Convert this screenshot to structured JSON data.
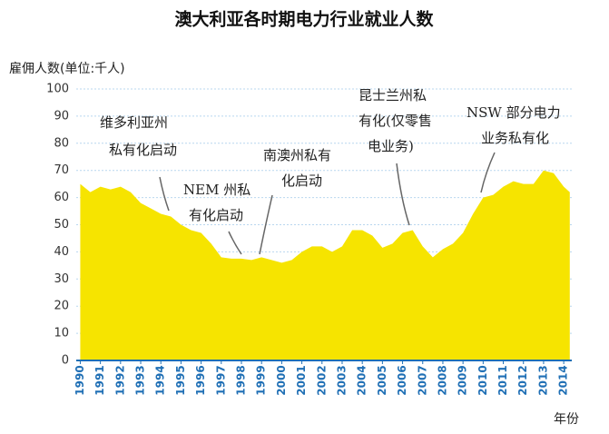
{
  "chart_data": {
    "type": "area",
    "title": "澳大利亚各时期电力行业就业人数",
    "y_label": "雇佣人数(单位:千人)",
    "x_label": "年份",
    "color": "#f6e400",
    "grid": true,
    "x": [
      1990,
      1990.5,
      1991,
      1991.5,
      1992,
      1992.5,
      1993,
      1993.5,
      1994,
      1994.5,
      1995,
      1995.5,
      1996,
      1996.5,
      1997,
      1997.5,
      1998,
      1998.5,
      1999,
      1999.5,
      2000,
      2000.5,
      2001,
      2001.5,
      2002,
      2002.5,
      2003,
      2003.5,
      2004,
      2004.5,
      2005,
      2005.5,
      2006,
      2006.5,
      2007,
      2007.5,
      2008,
      2008.5,
      2009,
      2009.5,
      2010,
      2010.5,
      2011,
      2011.5,
      2012,
      2012.5,
      2013,
      2013.5,
      2014,
      2014.3
    ],
    "values": [
      65,
      62,
      64,
      63,
      64,
      62,
      58,
      56,
      54,
      53,
      50,
      48,
      47,
      43,
      38,
      37.5,
      37.5,
      37,
      38,
      37,
      36,
      37,
      40,
      42,
      42,
      40,
      42,
      48,
      48,
      46,
      41.5,
      43,
      47,
      48,
      42,
      38,
      41,
      43,
      47,
      54,
      60,
      61,
      64,
      66,
      65,
      65,
      70,
      69,
      64,
      62
    ],
    "xlim": [
      1989.8,
      2014.4
    ],
    "xticks": [
      1990,
      1991,
      1992,
      1993,
      1994,
      1995,
      1996,
      1997,
      1998,
      1999,
      2000,
      2001,
      2002,
      2003,
      2004,
      2005,
      2006,
      2007,
      2008,
      2009,
      2010,
      2011,
      2012,
      2013,
      2014
    ],
    "ylim": [
      0,
      100
    ],
    "yticks": [
      0,
      10,
      20,
      30,
      40,
      50,
      60,
      70,
      80,
      90,
      100
    ],
    "annotations": [
      {
        "lines": [
          "维多利亚州",
          "私有化启动"
        ]
      },
      {
        "lines": [
          "NEM 州私",
          "有化启动"
        ]
      },
      {
        "lines": [
          "南澳州私有",
          "化启动"
        ]
      },
      {
        "lines": [
          "昆士兰州私",
          "有化(仅零售",
          "电业务)"
        ]
      },
      {
        "lines": [
          "NSW 部分电力",
          "业务私有化"
        ]
      }
    ]
  }
}
